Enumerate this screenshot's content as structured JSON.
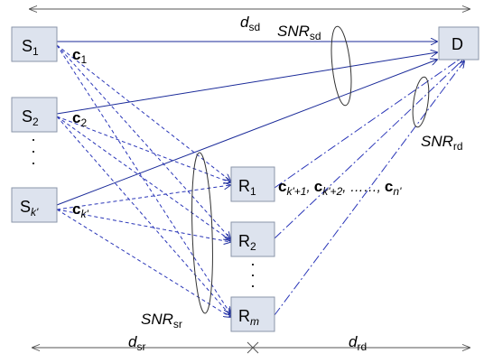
{
  "distances": {
    "sd": {
      "main": "d",
      "sub": "sd"
    },
    "sr": {
      "main": "d",
      "sub": "sr"
    },
    "rd": {
      "main": "d",
      "sub": "rd"
    }
  },
  "snr": {
    "sd": {
      "main": "SNR",
      "sub": "sd"
    },
    "rd": {
      "main": "SNR",
      "sub": "rd"
    },
    "sr": {
      "main": "SNR",
      "sub": "sr"
    }
  },
  "sources": [
    {
      "main": "S",
      "sub": "1"
    },
    {
      "main": "S",
      "sub": "2"
    },
    {
      "main": "S",
      "sub": "k'"
    }
  ],
  "relays": [
    {
      "main": "R",
      "sub": "1"
    },
    {
      "main": "R",
      "sub": "2"
    },
    {
      "main": "R",
      "sub": "m"
    }
  ],
  "destination": {
    "label": "D"
  },
  "source_codewords": [
    {
      "main": "c",
      "sub": "1"
    },
    {
      "main": "c",
      "sub": "2"
    },
    {
      "main": "c",
      "sub": "k'"
    }
  ],
  "relay_codewords": {
    "first": {
      "main": "c",
      "sub": "k'+1"
    },
    "second": {
      "main": "c",
      "sub": "k'+2"
    },
    "dots": ", ……, ",
    "last": {
      "main": "c",
      "sub": "n'"
    },
    "sep": ", "
  },
  "ellipsis_vertical": [
    "·",
    "·",
    "·"
  ],
  "colors": {
    "line": "#1a2a99",
    "node_fill": "#dde3ee",
    "node_border": "#8a95a8"
  }
}
